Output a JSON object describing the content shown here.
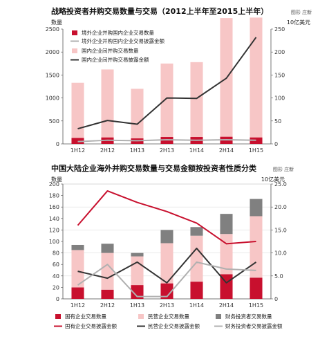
{
  "chart_data": [
    {
      "type": "bar",
      "title": "战略投资者并购交易数量与交易（2012上半年至2015上半年）",
      "credit": "图形 庄新",
      "ylabel": "数量",
      "y2label": "10亿美元",
      "categories": [
        "1H12",
        "2H12",
        "1H13",
        "2H13",
        "1H14",
        "2H14",
        "1H15"
      ],
      "ylim": [
        0,
        2500
      ],
      "y_ticks": [
        0,
        500,
        1000,
        1500,
        2000,
        2500
      ],
      "ylim2": [
        0,
        250
      ],
      "y2_ticks": [
        0,
        50,
        100,
        150,
        200,
        250
      ],
      "series": [
        {
          "name": "境外企业并购国内企业交易数量",
          "kind": "bar",
          "axis": "left",
          "color": "#c8102e",
          "values": [
            130,
            140,
            120,
            150,
            150,
            155,
            140
          ]
        },
        {
          "name": "境外企业并购国内企业交易披露金额",
          "kind": "line",
          "axis": "right",
          "color": "#b0b0b0",
          "values": [
            5,
            8,
            7,
            9,
            8,
            9,
            8
          ]
        },
        {
          "name": "国内企业间并购交易数量",
          "kind": "bar",
          "axis": "left",
          "color": "#f7c6c6",
          "values": [
            1330,
            1620,
            1200,
            1750,
            1780,
            2740,
            2750
          ]
        },
        {
          "name": "国内企业间并购交易披露金额",
          "kind": "line",
          "axis": "right",
          "color": "#333333",
          "values": [
            33,
            51,
            43,
            100,
            99,
            143,
            232
          ]
        }
      ],
      "legend": "top-left",
      "grid": false
    },
    {
      "type": "bar",
      "title": "中国大陆企业海外并购交易数量与交易金额按投资者性质分类",
      "credit": "图形 庄新",
      "ylabel": "数量",
      "y2label": "10亿美元",
      "categories": [
        "1H12",
        "2H12",
        "1H13",
        "2H13",
        "1H14",
        "2H14",
        "1H15"
      ],
      "ylim": [
        0,
        200
      ],
      "y_ticks": [
        0,
        20,
        40,
        60,
        80,
        100,
        120,
        140,
        160,
        180,
        200
      ],
      "ylim2": [
        0,
        25
      ],
      "y2_ticks": [
        0,
        5,
        10,
        15,
        20,
        25
      ],
      "y2_tick_labels": [
        "0",
        "5.0",
        "10.0",
        "15.0",
        "20.0",
        "25.0"
      ],
      "series": [
        {
          "name": "国有企业交易数量",
          "kind": "bar",
          "axis": "left",
          "stack": true,
          "color": "#c8102e",
          "values": [
            20,
            16,
            24,
            27,
            30,
            43,
            37
          ]
        },
        {
          "name": "民营企业交易数量",
          "kind": "bar",
          "axis": "left",
          "stack": true,
          "color": "#f7c6c6",
          "values": [
            65,
            64,
            50,
            70,
            80,
            70,
            107
          ]
        },
        {
          "name": "财务投资者交易数量",
          "kind": "bar",
          "axis": "left",
          "stack": true,
          "color": "#808080",
          "values": [
            9,
            16,
            6,
            23,
            15,
            35,
            30
          ]
        },
        {
          "name": "国有企业交易披露金额",
          "kind": "line",
          "axis": "right",
          "color": "#c8102e",
          "values": [
            16,
            23.5,
            21,
            19,
            16.5,
            12,
            12.5
          ]
        },
        {
          "name": "民营企业交易披露金额",
          "kind": "line",
          "axis": "right",
          "color": "#333333",
          "values": [
            6,
            4.5,
            8,
            3.5,
            11,
            3.5,
            8
          ]
        },
        {
          "name": "财务投资者交易披露金额",
          "kind": "line",
          "axis": "right",
          "color": "#b0b0b0",
          "values": [
            3,
            7.5,
            0.5,
            0.5,
            8,
            6.5,
            6.2
          ]
        }
      ],
      "legend": "bottom",
      "grid": true
    }
  ]
}
